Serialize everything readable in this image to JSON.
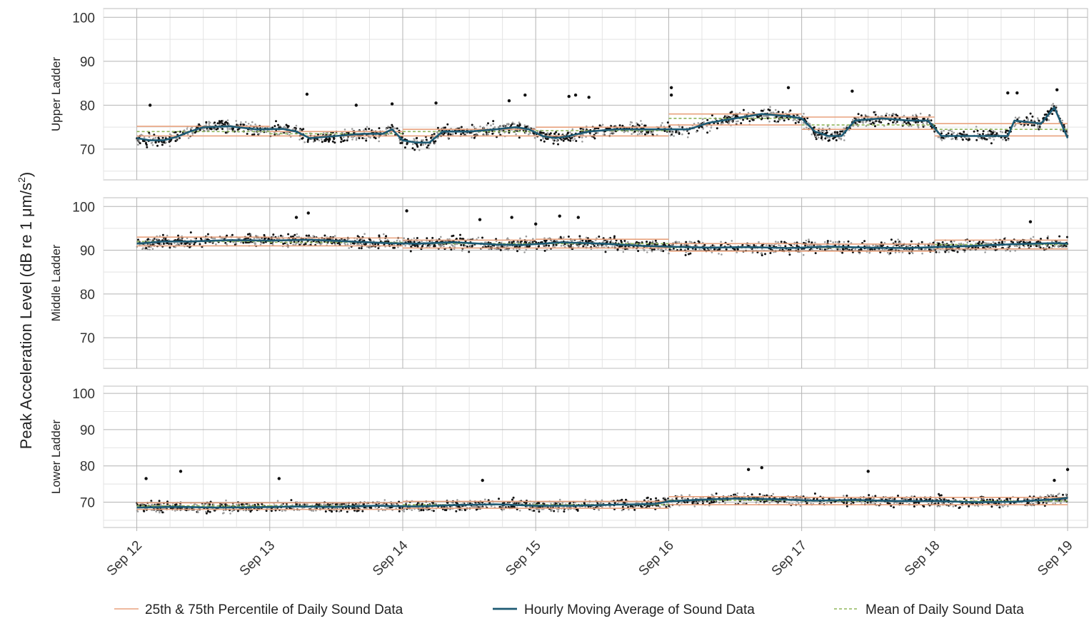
{
  "chart_data": {
    "type": "scatter",
    "ylabel": "Peak Acceleration Level (dB re 1 μm/s²)",
    "ylabel_main": "Peak Acceleration Level (dB re 1 μm/s",
    "ylabel_sup": "2",
    "ylabel_close": ")",
    "ylim": [
      63,
      102
    ],
    "ytick_values": [
      70,
      80,
      90,
      100
    ],
    "ytick_labels": [
      "70",
      "80",
      "90",
      "100"
    ],
    "x_ticks": [
      "Sep 12",
      "Sep 13",
      "Sep 14",
      "Sep 15",
      "Sep 16",
      "Sep 17",
      "Sep 18",
      "Sep 19"
    ],
    "x_tick_days": [
      12,
      13,
      14,
      15,
      16,
      17,
      18,
      19
    ],
    "xlim": [
      11.75,
      19.15
    ],
    "grid": true,
    "legend_position": "bottom",
    "colors": {
      "percentile": "#e8a27e",
      "moving_average": "#1d5a73",
      "mean": "#8fb55a",
      "points_dark": "#111111",
      "points_light": "#9a9a9a",
      "grid_major": "#b4b4b4",
      "grid_minor": "#e3e3e3",
      "panel_border": "#bdbdbd"
    },
    "legend": [
      {
        "key": "percentile",
        "label": "25th & 75th Percentile of Daily Sound Data"
      },
      {
        "key": "moving_average",
        "label": "Hourly Moving Average of Sound Data"
      },
      {
        "key": "mean",
        "label": "Mean of Daily Sound Data"
      }
    ],
    "panels": [
      {
        "name": "Upper Ladder",
        "hourly_moving_average": {
          "x": [
            12.0,
            12.1,
            12.2,
            12.3,
            12.4,
            12.5,
            12.7,
            12.9,
            13.1,
            13.2,
            13.3,
            13.5,
            13.7,
            13.85,
            13.92,
            14.0,
            14.1,
            14.2,
            14.3,
            14.5,
            14.7,
            14.85,
            14.95,
            15.05,
            15.15,
            15.25,
            15.4,
            15.6,
            15.8,
            16.0,
            16.15,
            16.3,
            16.5,
            16.7,
            16.9,
            17.0,
            17.1,
            17.2,
            17.3,
            17.4,
            17.6,
            17.8,
            17.95,
            18.05,
            18.2,
            18.4,
            18.55,
            18.6,
            18.8,
            18.9,
            19.0
          ],
          "y": [
            72.5,
            72.0,
            72.0,
            72.8,
            74.0,
            75.0,
            75.2,
            74.5,
            74.6,
            74.0,
            72.5,
            73.0,
            73.5,
            73.5,
            74.5,
            72.0,
            71.5,
            71.5,
            74.0,
            74.0,
            74.5,
            75.0,
            74.5,
            73.0,
            72.5,
            73.0,
            74.0,
            74.5,
            74.5,
            74.5,
            74.5,
            76.0,
            77.0,
            78.0,
            77.5,
            77.0,
            74.0,
            73.0,
            73.0,
            76.5,
            77.0,
            76.5,
            76.5,
            73.0,
            73.0,
            73.0,
            73.0,
            76.5,
            75.8,
            79.5,
            72.5
          ]
        },
        "percentile_25": [
          73.0,
          73.0,
          73.0,
          73.0,
          75.5,
          74.5,
          73.0
        ],
        "percentile_75": [
          75.2,
          74.0,
          74.5,
          75.0,
          78.0,
          77.3,
          75.8
        ],
        "daily_mean": [
          74.0,
          73.5,
          74.0,
          74.2,
          77.0,
          75.5,
          74.5
        ]
      },
      {
        "name": "Middle Ladder",
        "hourly_moving_average": {
          "x": [
            12.0,
            12.2,
            12.4,
            12.7,
            13.0,
            13.3,
            13.6,
            13.9,
            14.1,
            14.4,
            14.7,
            14.9,
            15.2,
            15.5,
            15.8,
            16.0,
            16.3,
            16.6,
            16.9,
            17.2,
            17.5,
            17.8,
            18.0,
            18.3,
            18.6,
            18.9,
            19.0
          ],
          "y": [
            91.5,
            92.0,
            92.0,
            92.3,
            92.2,
            92.4,
            92.0,
            91.6,
            91.5,
            91.8,
            91.3,
            91.2,
            91.8,
            91.5,
            91.0,
            90.8,
            90.6,
            90.7,
            90.5,
            90.8,
            90.6,
            90.5,
            90.7,
            91.0,
            91.4,
            91.6,
            91.5
          ]
        },
        "percentile_25": [
          91.0,
          91.0,
          90.5,
          90.5,
          89.8,
          89.8,
          90.3
        ],
        "percentile_75": [
          93.0,
          92.8,
          92.3,
          92.5,
          91.5,
          91.4,
          92.3
        ],
        "daily_mean": [
          92.0,
          91.8,
          91.5,
          91.5,
          90.6,
          90.6,
          91.3
        ]
      },
      {
        "name": "Lower Ladder",
        "hourly_moving_average": {
          "x": [
            12.0,
            12.3,
            12.6,
            12.9,
            13.2,
            13.5,
            13.8,
            14.1,
            14.4,
            14.7,
            15.0,
            15.3,
            15.6,
            15.9,
            16.0,
            16.2,
            16.5,
            16.8,
            17.1,
            17.4,
            17.7,
            18.0,
            18.3,
            18.6,
            18.9,
            19.0
          ],
          "y": [
            68.5,
            68.7,
            68.5,
            68.6,
            68.8,
            68.7,
            69.0,
            68.8,
            69.2,
            69.4,
            69.0,
            69.0,
            69.3,
            69.5,
            70.2,
            70.6,
            71.0,
            70.8,
            70.4,
            70.6,
            70.3,
            70.3,
            70.0,
            70.1,
            70.8,
            71.2
          ]
        },
        "percentile_25": [
          68.0,
          68.0,
          68.3,
          68.3,
          69.3,
          69.3,
          69.3
        ],
        "percentile_75": [
          69.8,
          69.8,
          70.2,
          70.2,
          71.5,
          71.3,
          71.3
        ],
        "daily_mean": [
          69.0,
          69.0,
          69.3,
          69.3,
          70.5,
          70.3,
          70.3
        ]
      }
    ],
    "scatter_outliers": [
      {
        "panel": 0,
        "x": 12.1,
        "y": 80.0
      },
      {
        "panel": 0,
        "x": 13.28,
        "y": 82.5
      },
      {
        "panel": 0,
        "x": 13.65,
        "y": 80.0
      },
      {
        "panel": 0,
        "x": 13.92,
        "y": 80.3
      },
      {
        "panel": 0,
        "x": 14.25,
        "y": 80.5
      },
      {
        "panel": 0,
        "x": 14.8,
        "y": 81.0
      },
      {
        "panel": 0,
        "x": 14.92,
        "y": 82.3
      },
      {
        "panel": 0,
        "x": 15.25,
        "y": 82.0
      },
      {
        "panel": 0,
        "x": 15.3,
        "y": 82.3
      },
      {
        "panel": 0,
        "x": 15.4,
        "y": 81.8
      },
      {
        "panel": 0,
        "x": 16.02,
        "y": 84.0
      },
      {
        "panel": 0,
        "x": 16.02,
        "y": 82.3
      },
      {
        "panel": 0,
        "x": 16.9,
        "y": 84.0
      },
      {
        "panel": 0,
        "x": 17.38,
        "y": 83.2
      },
      {
        "panel": 0,
        "x": 18.55,
        "y": 82.8
      },
      {
        "panel": 0,
        "x": 18.62,
        "y": 82.8
      },
      {
        "panel": 0,
        "x": 18.92,
        "y": 83.5
      },
      {
        "panel": 1,
        "x": 13.2,
        "y": 97.5
      },
      {
        "panel": 1,
        "x": 13.29,
        "y": 98.5
      },
      {
        "panel": 1,
        "x": 14.03,
        "y": 99.0
      },
      {
        "panel": 1,
        "x": 14.58,
        "y": 97.0
      },
      {
        "panel": 1,
        "x": 14.82,
        "y": 97.5
      },
      {
        "panel": 1,
        "x": 15.0,
        "y": 96.0
      },
      {
        "panel": 1,
        "x": 15.18,
        "y": 97.8
      },
      {
        "panel": 1,
        "x": 15.32,
        "y": 97.5
      },
      {
        "panel": 1,
        "x": 18.72,
        "y": 96.5
      },
      {
        "panel": 2,
        "x": 12.07,
        "y": 76.5
      },
      {
        "panel": 2,
        "x": 12.33,
        "y": 78.5
      },
      {
        "panel": 2,
        "x": 13.07,
        "y": 76.5
      },
      {
        "panel": 2,
        "x": 14.6,
        "y": 76.0
      },
      {
        "panel": 2,
        "x": 16.6,
        "y": 79.0
      },
      {
        "panel": 2,
        "x": 16.7,
        "y": 79.5
      },
      {
        "panel": 2,
        "x": 17.5,
        "y": 78.5
      },
      {
        "panel": 2,
        "x": 18.9,
        "y": 76.0
      },
      {
        "panel": 2,
        "x": 19.0,
        "y": 79.0
      }
    ]
  }
}
